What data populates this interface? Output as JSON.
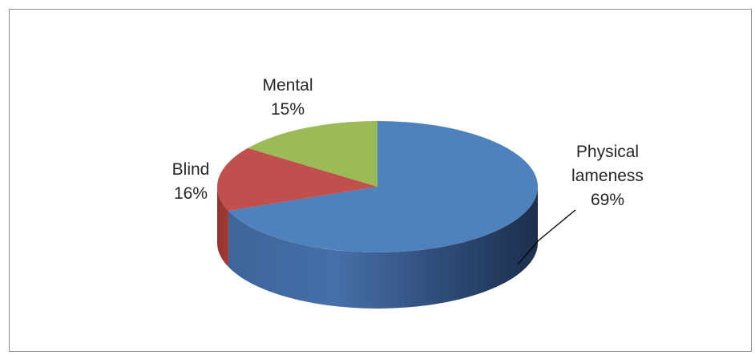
{
  "chart_data": {
    "type": "pie",
    "title": "",
    "style": "3d",
    "slices": [
      {
        "label": "Physical lameness",
        "label_lines": [
          "Physical",
          "lameness",
          "69%"
        ],
        "value": 69,
        "display": "69%",
        "color": "#4f81bd"
      },
      {
        "label": "Blind",
        "label_lines": [
          "Blind",
          "16%"
        ],
        "value": 16,
        "display": "16%",
        "color": "#c0504d"
      },
      {
        "label": "Mental",
        "label_lines": [
          "Mental",
          "15%"
        ],
        "value": 15,
        "display": "15%",
        "color": "#9bbb59"
      }
    ],
    "legend": "none"
  }
}
